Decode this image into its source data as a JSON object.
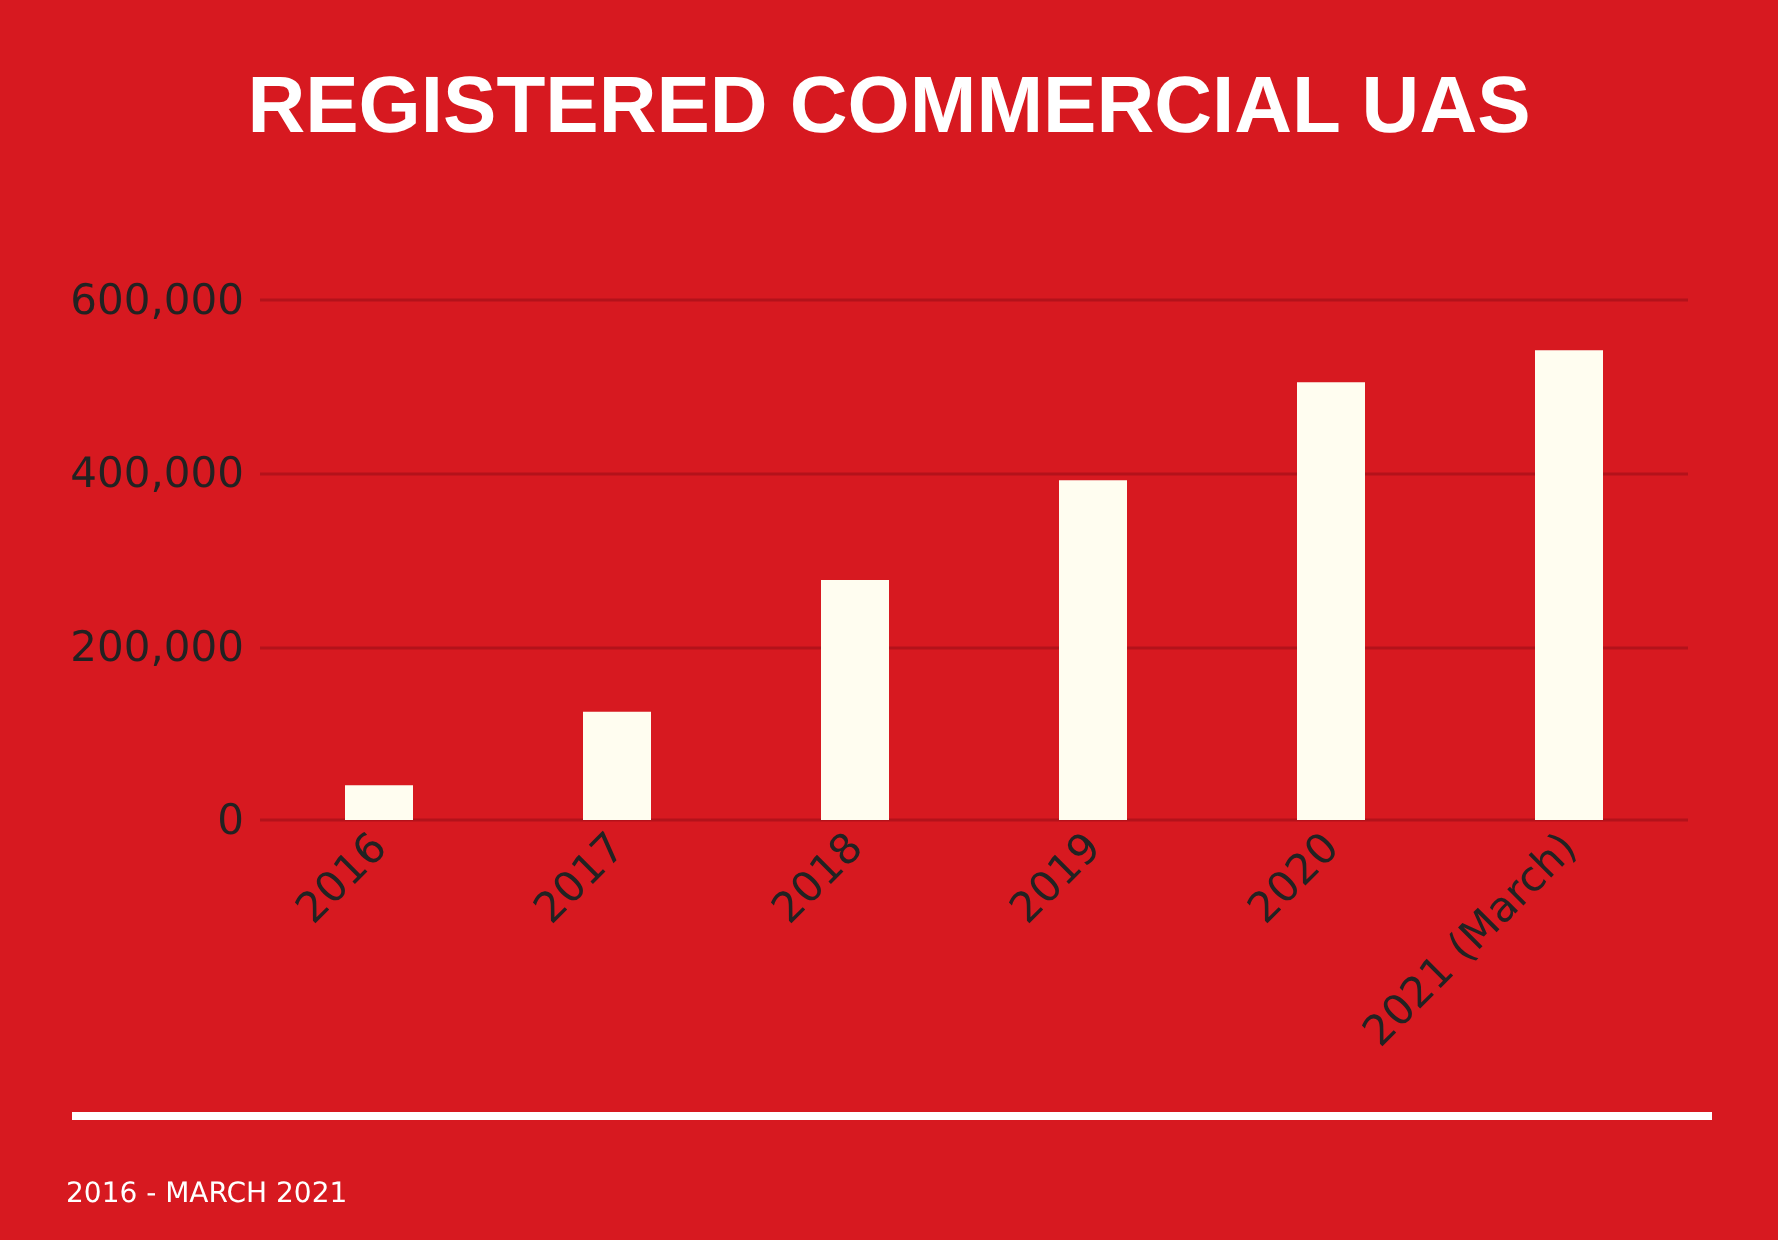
{
  "chart_data": {
    "type": "bar",
    "title": "REGISTERED COMMERCIAL UAS",
    "categories": [
      "2016",
      "2017",
      "2018",
      "2019",
      "2020",
      "2021 (March)"
    ],
    "values": [
      40000,
      125000,
      277000,
      392000,
      505000,
      542000
    ],
    "color": "#fffdf0",
    "ylim": [
      0,
      600000
    ],
    "yticks": [
      {
        "value": 0,
        "label": "0"
      },
      {
        "value": 200000,
        "label": "200,000"
      },
      {
        "value": 400000,
        "label": "400,000"
      },
      {
        "value": 600000,
        "label": "600,000"
      }
    ],
    "grid": "y",
    "annotations": [
      "2016 - MARCH 2021"
    ]
  }
}
